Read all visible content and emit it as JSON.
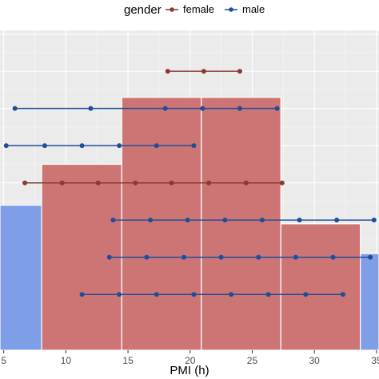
{
  "chart_data": {
    "type": "bar",
    "xlabel": "PMI (h)",
    "ylabel": "",
    "xlim": [
      4.7,
      35.2
    ],
    "ylim": [
      0,
      8.6
    ],
    "grid": true,
    "legend_position": "top",
    "legend": {
      "title": "gender",
      "entries": [
        {
          "label": "female",
          "color": "#8b3a2e"
        },
        {
          "label": "male",
          "color": "#1f4e96"
        }
      ]
    },
    "x_ticks": [
      5,
      10,
      15,
      20,
      25,
      30,
      35
    ],
    "x_tick_labels": [
      "5",
      "10",
      "15",
      "20",
      "25",
      "30",
      "35"
    ],
    "bars": [
      {
        "x0": 4.7,
        "x1": 8.05,
        "height": 3.9,
        "fill": "#7f9ee8"
      },
      {
        "x0": 8.05,
        "x1": 14.5,
        "height": 5.0,
        "fill": "#cd7575"
      },
      {
        "x0": 14.5,
        "x1": 20.9,
        "height": 6.8,
        "fill": "#cd7575"
      },
      {
        "x0": 20.9,
        "x1": 27.3,
        "height": 6.8,
        "fill": "#cd7575"
      },
      {
        "x0": 27.3,
        "x1": 33.7,
        "height": 3.4,
        "fill": "#cd7575"
      },
      {
        "x0": 33.7,
        "x1": 35.2,
        "height": 2.6,
        "fill": "#7f9ee8"
      }
    ],
    "series": [
      {
        "group": "female",
        "color": "#8b3a2e",
        "y": 7.5,
        "x": [
          18.2,
          21.1,
          24.0
        ]
      },
      {
        "group": "male",
        "color": "#1f4e96",
        "y": 6.5,
        "x": [
          5.9,
          12.0,
          18.0,
          21.0,
          24.0,
          27.0
        ]
      },
      {
        "group": "male",
        "color": "#1f4e96",
        "y": 5.5,
        "x": [
          5.2,
          8.3,
          11.3,
          14.3,
          17.3,
          20.3
        ]
      },
      {
        "group": "female",
        "color": "#8b3a2e",
        "y": 4.5,
        "x": [
          6.7,
          9.7,
          12.6,
          15.6,
          18.5,
          21.5,
          24.5,
          27.4
        ]
      },
      {
        "group": "male",
        "color": "#1f4e96",
        "y": 3.5,
        "x": [
          13.8,
          16.8,
          19.8,
          22.8,
          25.8,
          28.8,
          31.8,
          34.8
        ]
      },
      {
        "group": "male",
        "color": "#1f4e96",
        "y": 2.5,
        "x": [
          13.5,
          16.5,
          19.5,
          22.5,
          25.5,
          28.5,
          31.5,
          34.5
        ]
      },
      {
        "group": "male",
        "color": "#1f4e96",
        "y": 1.5,
        "x": [
          11.3,
          14.3,
          17.3,
          20.3,
          23.3,
          26.3,
          29.3,
          32.3
        ]
      }
    ]
  }
}
